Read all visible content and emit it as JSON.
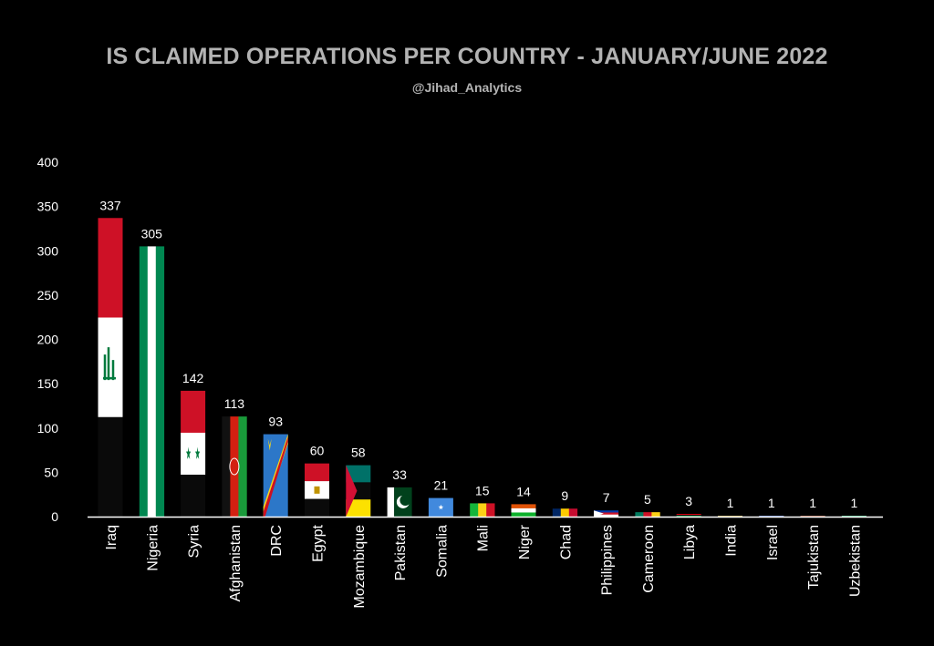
{
  "chart_data": {
    "type": "bar",
    "title": "IS CLAIMED OPERATIONS PER COUNTRY - JANUARY/JUNE 2022",
    "subtitle": "@Jihad_Analytics",
    "xlabel": "",
    "ylabel": "",
    "ylim": [
      0,
      400
    ],
    "yticks": [
      0,
      50,
      100,
      150,
      200,
      250,
      300,
      350,
      400
    ],
    "grid": false,
    "categories": [
      "Iraq",
      "Nigeria",
      "Syria",
      "Afghanistan",
      "DRC",
      "Egypt",
      "Mozambique",
      "Pakistan",
      "Somalia",
      "Mali",
      "Niger",
      "Chad",
      "Philippines",
      "Cameroon",
      "Libya",
      "India",
      "Israel",
      "Tajukistan",
      "Uzbekistan"
    ],
    "values": [
      337,
      305,
      142,
      113,
      93,
      60,
      58,
      33,
      21,
      15,
      14,
      9,
      7,
      5,
      3,
      1,
      1,
      1,
      1
    ],
    "flags": {
      "Iraq": [
        "#ce1126",
        "#ffffff",
        "#0a0a0a"
      ],
      "Nigeria": [
        "#008751",
        "#ffffff",
        "#008751"
      ],
      "Syria": [
        "#ce1126",
        "#ffffff",
        "#0a0a0a"
      ],
      "Afghanistan": [
        "#111111",
        "#d32011",
        "#199a3a"
      ],
      "DRC": [
        "#2c77c8",
        "#f7d618",
        "#ce1021"
      ],
      "Egypt": [
        "#ce1126",
        "#ffffff",
        "#0a0a0a"
      ],
      "Mozambique": [
        "#007168",
        "#0a0a0a",
        "#fce100",
        "#d21034"
      ],
      "Pakistan": [
        "#ffffff",
        "#01411c"
      ],
      "Somalia": [
        "#4189dd"
      ],
      "Mali": [
        "#14b53a",
        "#fcd116",
        "#ce1126"
      ],
      "Niger": [
        "#e05206",
        "#ffffff",
        "#0db02b"
      ],
      "Chad": [
        "#002664",
        "#fecb00",
        "#c60c30"
      ],
      "Philippines": [
        "#0038a8",
        "#ce1126",
        "#ffffff"
      ],
      "Cameroon": [
        "#007a5e",
        "#ce1126",
        "#fcd116"
      ],
      "Libya": [
        "#e70013",
        "#0a0a0a",
        "#239e46"
      ],
      "India": [
        "#ff9933",
        "#ffffff",
        "#138808"
      ],
      "Israel": [
        "#ffffff",
        "#0038b8"
      ],
      "Tajukistan": [
        "#cc0000",
        "#ffffff",
        "#006600"
      ],
      "Uzbekistan": [
        "#1eb53a",
        "#ffffff",
        "#0099b5"
      ]
    }
  }
}
